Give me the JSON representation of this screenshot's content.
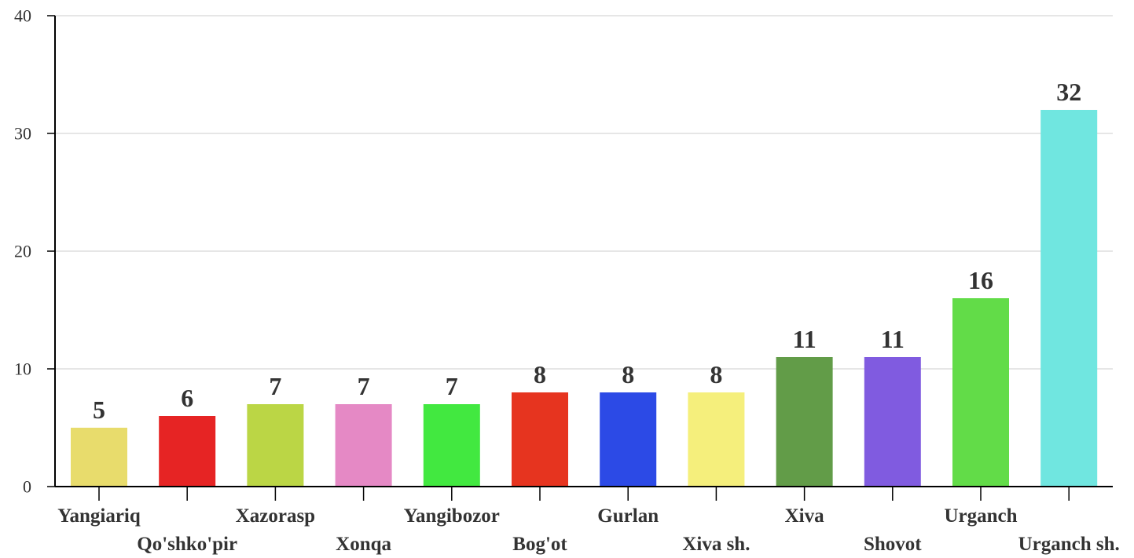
{
  "chart_data": {
    "type": "bar",
    "categories": [
      "Yangiariq",
      "Qo'shko'pir",
      "Xazorasp",
      "Xonqa",
      "Yangibozor",
      "Bog'ot",
      "Gurlan",
      "Xiva sh.",
      "Xiva",
      "Shovot",
      "Urganch",
      "Urganch sh."
    ],
    "values": [
      5,
      6,
      7,
      7,
      7,
      8,
      8,
      8,
      11,
      11,
      16,
      32
    ],
    "colors": [
      "#e8dc6c",
      "#e62424",
      "#bbd645",
      "#e589c5",
      "#42e840",
      "#e6341f",
      "#2c4ae6",
      "#f5ef7c",
      "#629c48",
      "#805be0",
      "#62dc48",
      "#70e6e0"
    ],
    "ylim": [
      0,
      40
    ],
    "yticks": [
      0,
      10,
      20,
      30,
      40
    ],
    "grid": true,
    "data_labels": true,
    "title": "",
    "xlabel": "",
    "ylabel": ""
  }
}
